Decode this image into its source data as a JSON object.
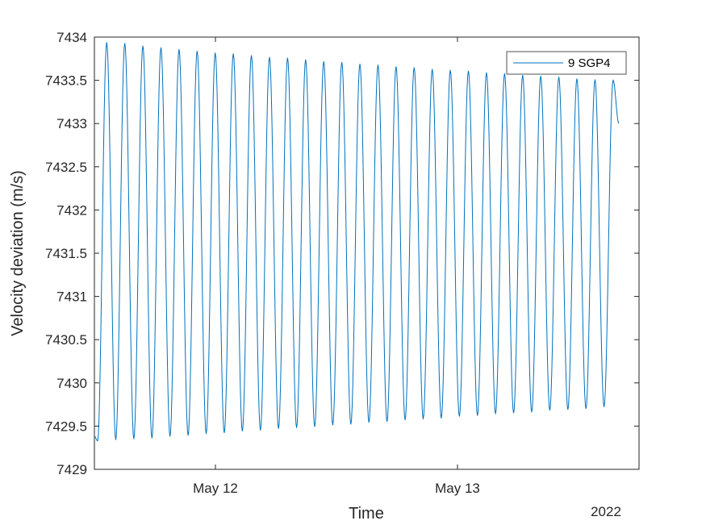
{
  "chart_data": {
    "type": "line",
    "xlabel": "Time",
    "ylabel": "Velocity deviation (m/s)",
    "x_year_label": "2022",
    "xlim": [
      "2022-05-11 12:00",
      "2022-05-13 18:00"
    ],
    "x_ticks": [
      {
        "value": "2022-05-12 00:00",
        "label": "May 12"
      },
      {
        "value": "2022-05-13 00:00",
        "label": "May 13"
      }
    ],
    "ylim": [
      7429,
      7434
    ],
    "y_ticks": [
      {
        "value": 7429,
        "label": "7429"
      },
      {
        "value": 7429.5,
        "label": "7429.5"
      },
      {
        "value": 7430,
        "label": "7430"
      },
      {
        "value": 7430.5,
        "label": "7430.5"
      },
      {
        "value": 7431,
        "label": "7431"
      },
      {
        "value": 7431.5,
        "label": "7431.5"
      },
      {
        "value": 7432,
        "label": "7432"
      },
      {
        "value": 7432.5,
        "label": "7432.5"
      },
      {
        "value": 7433,
        "label": "7433"
      },
      {
        "value": 7433.5,
        "label": "7433.5"
      },
      {
        "value": 7434,
        "label": "7434"
      }
    ],
    "grid": false,
    "legend_position": "top-right",
    "series": [
      {
        "name": "9 SGP4",
        "color": "#0072BD",
        "data_start": "2022-05-11 12:00",
        "data_end": "2022-05-13 16:00",
        "oscillation": {
          "cycles": 29,
          "period_hours": 1.8,
          "peaks": [
            7433.94,
            7433.93,
            7433.9,
            7433.88,
            7433.86,
            7433.84,
            7433.82,
            7433.81,
            7433.79,
            7433.77,
            7433.76,
            7433.74,
            7433.72,
            7433.71,
            7433.69,
            7433.68,
            7433.66,
            7433.65,
            7433.63,
            7433.62,
            7433.61,
            7433.59,
            7433.58,
            7433.56,
            7433.55,
            7433.54,
            7433.52,
            7433.51,
            7433.5
          ],
          "troughs": [
            7429.33,
            7429.34,
            7429.35,
            7429.36,
            7429.38,
            7429.39,
            7429.41,
            7429.42,
            7429.44,
            7429.45,
            7429.47,
            7429.48,
            7429.49,
            7429.51,
            7429.52,
            7429.54,
            7429.55,
            7429.57,
            7429.58,
            7429.59,
            7429.61,
            7429.62,
            7429.64,
            7429.65,
            7429.66,
            7429.68,
            7429.69,
            7429.7,
            7429.72
          ],
          "start_value": 7429.38,
          "end_value": 7433.0
        }
      }
    ]
  }
}
